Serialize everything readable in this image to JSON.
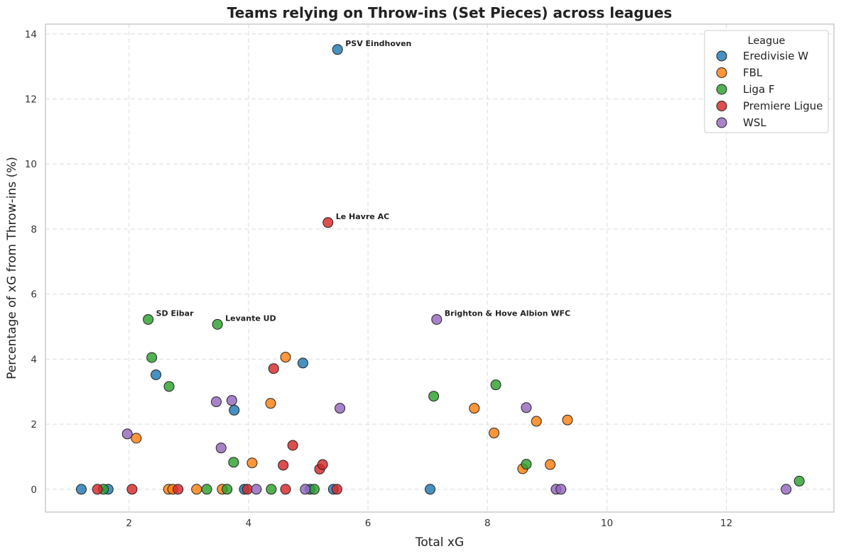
{
  "chart_data": {
    "type": "scatter",
    "title": "Teams relying on Throw-ins (Set Pieces) across leagues",
    "xlabel": "Total xG",
    "ylabel": "Percentage of xG from Throw-ins (%)",
    "xlim": [
      0.6,
      13.8
    ],
    "ylim": [
      -0.7,
      14.3
    ],
    "xticks": [
      2,
      4,
      6,
      8,
      10,
      12
    ],
    "yticks": [
      0,
      2,
      4,
      6,
      8,
      10,
      12,
      14
    ],
    "grid": true,
    "legend": {
      "title": "League",
      "placement": "top-right",
      "entries": [
        "Eredivisie W",
        "FBL",
        "Liga F",
        "Premiere Ligue",
        "WSL"
      ]
    },
    "colors": {
      "Eredivisie W": "#1f77b4",
      "FBL": "#ff7f0e",
      "Liga F": "#2ca02c",
      "Premiere Ligue": "#d62728",
      "WSL": "#9467bd"
    },
    "series": [
      {
        "name": "Eredivisie W",
        "x": [
          5.49,
          2.45,
          3.76,
          4.91,
          1.2,
          1.65,
          3.93,
          5.03,
          5.42,
          7.04
        ],
        "y": [
          13.52,
          3.52,
          2.43,
          3.88,
          0,
          0,
          0,
          0,
          0,
          0
        ]
      },
      {
        "name": "FBL",
        "x": [
          2.12,
          4.06,
          4.37,
          4.62,
          7.78,
          8.11,
          8.82,
          9.34,
          8.59,
          9.05,
          2.66,
          2.73,
          3.13,
          3.56
        ],
        "y": [
          1.57,
          0.81,
          2.64,
          4.06,
          2.49,
          1.73,
          2.09,
          2.13,
          0.63,
          0.76,
          0,
          0,
          0,
          0
        ]
      },
      {
        "name": "Liga F",
        "x": [
          2.32,
          2.38,
          2.67,
          3.48,
          3.75,
          7.1,
          8.14,
          8.65,
          13.22,
          1.57,
          3.3,
          3.64,
          4.38,
          5.1
        ],
        "y": [
          5.22,
          4.05,
          3.16,
          5.07,
          0.83,
          2.86,
          3.21,
          0.77,
          0.25,
          0,
          0,
          0,
          0,
          0
        ]
      },
      {
        "name": "Premiere Ligue",
        "x": [
          5.33,
          4.42,
          4.74,
          4.58,
          5.19,
          5.24,
          1.47,
          2.05,
          2.82,
          3.98,
          4.62,
          5.48
        ],
        "y": [
          8.2,
          3.71,
          1.35,
          0.74,
          0.62,
          0.76,
          0,
          0,
          0,
          0,
          0,
          0
        ]
      },
      {
        "name": "WSL",
        "x": [
          7.15,
          1.97,
          3.46,
          3.72,
          3.54,
          5.53,
          8.65,
          4.13,
          4.95,
          9.15,
          9.23,
          13.0
        ],
        "y": [
          5.22,
          1.7,
          2.69,
          2.73,
          1.27,
          2.49,
          2.51,
          0,
          0,
          0,
          0,
          0
        ]
      }
    ],
    "annotations": [
      {
        "text": "PSV Eindhoven",
        "x": 5.49,
        "y": 13.52,
        "series": "Eredivisie W"
      },
      {
        "text": "Le Havre AC",
        "x": 5.33,
        "y": 8.2,
        "series": "Premiere Ligue"
      },
      {
        "text": "SD Eibar",
        "x": 2.32,
        "y": 5.22,
        "series": "Liga F"
      },
      {
        "text": "Levante UD",
        "x": 3.48,
        "y": 5.07,
        "series": "Liga F"
      },
      {
        "text": "Brighton & Hove Albion WFC",
        "x": 7.15,
        "y": 5.22,
        "series": "WSL"
      }
    ]
  }
}
